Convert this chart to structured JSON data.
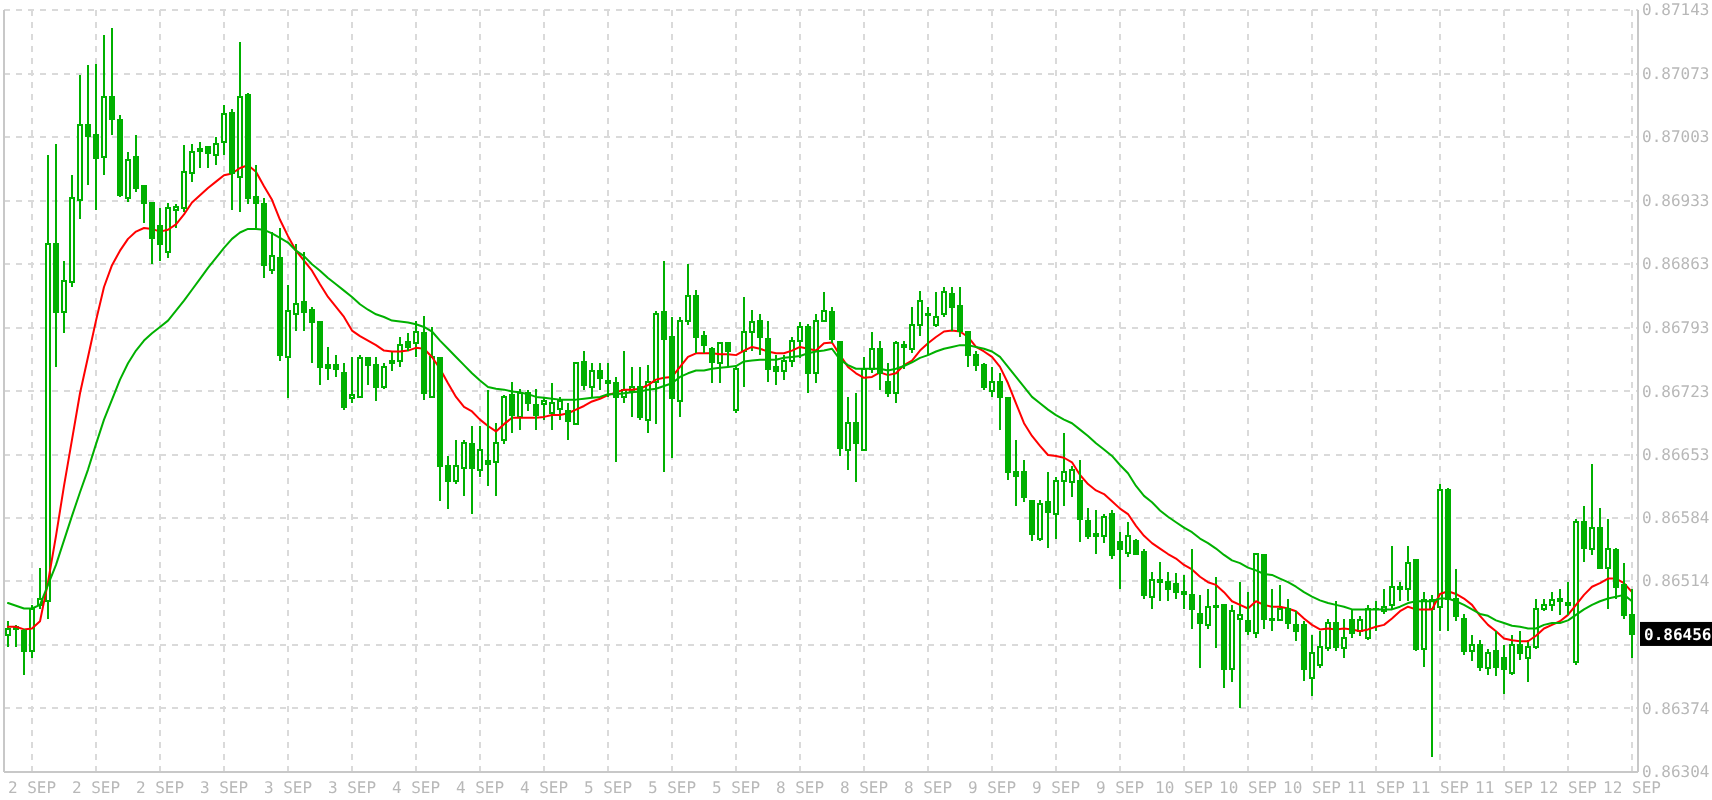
{
  "chart_data": {
    "type": "candlestick",
    "color": "#00b000",
    "grid": true,
    "ylim": [
      0.86304,
      0.87143
    ],
    "yticks": [
      0.87143,
      0.87073,
      0.87003,
      0.86933,
      0.86863,
      0.86793,
      0.86723,
      0.86653,
      0.86584,
      0.86514,
      {
        "value": 0.86444,
        "label": null
      },
      0.86374,
      0.86304
    ],
    "annotations": [
      {
        "text": "0.86456",
        "y": 0.86456
      }
    ],
    "categories": [
      null,
      null,
      null,
      "2 SEP",
      null,
      null,
      null,
      null,
      null,
      null,
      null,
      "2 SEP",
      null,
      null,
      null,
      null,
      null,
      null,
      null,
      "2 SEP",
      null,
      null,
      null,
      null,
      null,
      null,
      null,
      "3 SEP",
      null,
      null,
      null,
      null,
      null,
      null,
      null,
      "3 SEP",
      null,
      null,
      null,
      null,
      null,
      null,
      null,
      "3 SEP",
      null,
      null,
      null,
      null,
      null,
      null,
      null,
      "4 SEP",
      null,
      null,
      null,
      null,
      null,
      null,
      null,
      "4 SEP",
      null,
      null,
      null,
      null,
      null,
      null,
      null,
      "4 SEP",
      null,
      null,
      null,
      null,
      null,
      null,
      null,
      "5 SEP",
      null,
      null,
      null,
      null,
      null,
      null,
      null,
      "5 SEP",
      null,
      null,
      null,
      null,
      null,
      null,
      null,
      "5 SEP",
      null,
      null,
      null,
      null,
      null,
      null,
      null,
      "8 SEP",
      null,
      null,
      null,
      null,
      null,
      null,
      null,
      "8 SEP",
      null,
      null,
      null,
      null,
      null,
      null,
      null,
      "8 SEP",
      null,
      null,
      null,
      null,
      null,
      null,
      null,
      "9 SEP",
      null,
      null,
      null,
      null,
      null,
      null,
      null,
      "9 SEP",
      null,
      null,
      null,
      null,
      null,
      null,
      null,
      "9 SEP",
      null,
      null,
      null,
      null,
      null,
      null,
      null,
      "10 SEP",
      null,
      null,
      null,
      null,
      null,
      null,
      null,
      "10 SEP",
      null,
      null,
      null,
      null,
      null,
      null,
      null,
      "10 SEP",
      null,
      null,
      null,
      null,
      null,
      null,
      null,
      "11 SEP",
      null,
      null,
      null,
      null,
      null,
      null,
      null,
      "11 SEP",
      null,
      null,
      null,
      null,
      null,
      null,
      null,
      "11 SEP",
      null,
      null,
      null,
      null,
      null,
      null,
      null,
      "12 SEP",
      null,
      null,
      null,
      null,
      null,
      null,
      null,
      "12 SEP"
    ],
    "ohlc": [
      [
        0.86455,
        0.8647,
        0.86442,
        0.86462
      ],
      [
        0.86461,
        0.86466,
        0.86442,
        0.86464
      ],
      [
        0.86459,
        0.86462,
        0.86411,
        0.86437
      ],
      [
        0.86437,
        0.86488,
        0.8643,
        0.86484
      ],
      [
        0.86488,
        0.86529,
        0.86483,
        0.86495
      ],
      [
        0.86492,
        0.86983,
        0.86473,
        0.86885
      ],
      [
        0.86885,
        0.86996,
        0.8675,
        0.86811
      ],
      [
        0.86811,
        0.86867,
        0.86787,
        0.86845
      ],
      [
        0.86843,
        0.86961,
        0.86838,
        0.86936
      ],
      [
        0.86934,
        0.87071,
        0.86913,
        0.87016
      ],
      [
        0.87016,
        0.87082,
        0.8695,
        0.87004
      ],
      [
        0.87005,
        0.87084,
        0.86923,
        0.8698
      ],
      [
        0.86981,
        0.87116,
        0.86961,
        0.87047
      ],
      [
        0.87047,
        0.87123,
        0.87005,
        0.87023
      ],
      [
        0.87022,
        0.87027,
        0.86937,
        0.86939
      ],
      [
        0.86936,
        0.86987,
        0.86932,
        0.86978
      ],
      [
        0.86981,
        0.87005,
        0.86943,
        0.86947
      ],
      [
        0.86949,
        0.86949,
        0.86908,
        0.86931
      ],
      [
        0.8693,
        0.86932,
        0.86863,
        0.86892
      ],
      [
        0.86905,
        0.86925,
        0.86867,
        0.86885
      ],
      [
        0.86876,
        0.8693,
        0.8687,
        0.86925
      ],
      [
        0.86923,
        0.86929,
        0.86903,
        0.86926
      ],
      [
        0.86925,
        0.86994,
        0.86921,
        0.86965
      ],
      [
        0.86963,
        0.86996,
        0.86954,
        0.86987
      ],
      [
        0.86988,
        0.86998,
        0.86969,
        0.8699
      ],
      [
        0.86992,
        0.86992,
        0.86969,
        0.86985
      ],
      [
        0.86983,
        0.87003,
        0.86972,
        0.86996
      ],
      [
        0.86998,
        0.87038,
        0.86983,
        0.87029
      ],
      [
        0.8703,
        0.87034,
        0.86923,
        0.86963
      ],
      [
        0.86959,
        0.87108,
        0.86921,
        0.87047
      ],
      [
        0.87049,
        0.87052,
        0.86929,
        0.86936
      ],
      [
        0.86937,
        0.86972,
        0.86903,
        0.86931
      ],
      [
        0.86929,
        0.86936,
        0.86848,
        0.86862
      ],
      [
        0.86857,
        0.86899,
        0.86852,
        0.86872
      ],
      [
        0.8687,
        0.86903,
        0.86757,
        0.86763
      ],
      [
        0.86761,
        0.8684,
        0.86716,
        0.86812
      ],
      [
        0.86808,
        0.86885,
        0.8679,
        0.86819
      ],
      [
        0.86821,
        0.86876,
        0.8679,
        0.86811
      ],
      [
        0.86813,
        0.86816,
        0.86754,
        0.868
      ],
      [
        0.86799,
        0.86799,
        0.8673,
        0.8675
      ],
      [
        0.86752,
        0.86772,
        0.86736,
        0.86749
      ],
      [
        0.86752,
        0.86763,
        0.86739,
        0.86748
      ],
      [
        0.86743,
        0.86754,
        0.86703,
        0.86706
      ],
      [
        0.86716,
        0.86761,
        0.8671,
        0.86719
      ],
      [
        0.86717,
        0.86763,
        0.86716,
        0.8676
      ],
      [
        0.8676,
        0.86761,
        0.8673,
        0.86752
      ],
      [
        0.86752,
        0.86761,
        0.86712,
        0.86728
      ],
      [
        0.86728,
        0.86754,
        0.86726,
        0.8675
      ],
      [
        0.86754,
        0.86768,
        0.86745,
        0.86756
      ],
      [
        0.86757,
        0.86783,
        0.8675,
        0.86774
      ],
      [
        0.86777,
        0.86787,
        0.86768,
        0.86772
      ],
      [
        0.86776,
        0.86801,
        0.86761,
        0.86788
      ],
      [
        0.86787,
        0.86806,
        0.86714,
        0.86721
      ],
      [
        0.86717,
        0.86794,
        0.86716,
        0.86761
      ],
      [
        0.8676,
        0.86761,
        0.86602,
        0.86641
      ],
      [
        0.86641,
        0.86652,
        0.86594,
        0.86624
      ],
      [
        0.86624,
        0.8667,
        0.86621,
        0.86641
      ],
      [
        0.86639,
        0.8667,
        0.86608,
        0.86666
      ],
      [
        0.86665,
        0.86685,
        0.86588,
        0.86639
      ],
      [
        0.86637,
        0.86685,
        0.86629,
        0.86658
      ],
      [
        0.86646,
        0.86725,
        0.86619,
        0.86643
      ],
      [
        0.86645,
        0.86688,
        0.86608,
        0.86666
      ],
      [
        0.8667,
        0.86719,
        0.86665,
        0.86717
      ],
      [
        0.86719,
        0.86733,
        0.86677,
        0.86697
      ],
      [
        0.86695,
        0.86726,
        0.86681,
        0.86721
      ],
      [
        0.86721,
        0.86725,
        0.86701,
        0.8671
      ],
      [
        0.86708,
        0.86726,
        0.86681,
        0.86697
      ],
      [
        0.86709,
        0.86717,
        0.86692,
        0.86712
      ],
      [
        0.86699,
        0.86732,
        0.86681,
        0.8671
      ],
      [
        0.86704,
        0.86717,
        0.86692,
        0.86713
      ],
      [
        0.86701,
        0.8671,
        0.8667,
        0.8669
      ],
      [
        0.86687,
        0.86754,
        0.86687,
        0.86754
      ],
      [
        0.86755,
        0.86768,
        0.86725,
        0.8673
      ],
      [
        0.86728,
        0.86754,
        0.86717,
        0.86745
      ],
      [
        0.86745,
        0.86754,
        0.86725,
        0.86738
      ],
      [
        0.86734,
        0.86754,
        0.86717,
        0.86732
      ],
      [
        0.86732,
        0.86739,
        0.86645,
        0.86717
      ],
      [
        0.86717,
        0.86767,
        0.8671,
        0.86725
      ],
      [
        0.86723,
        0.8675,
        0.86695,
        0.86728
      ],
      [
        0.86728,
        0.8675,
        0.86692,
        0.86695
      ],
      [
        0.86692,
        0.86752,
        0.86677,
        0.86733
      ],
      [
        0.86733,
        0.86812,
        0.86687,
        0.86808
      ],
      [
        0.86811,
        0.86867,
        0.86634,
        0.86781
      ],
      [
        0.86783,
        0.86805,
        0.8665,
        0.86716
      ],
      [
        0.86712,
        0.86805,
        0.86695,
        0.86801
      ],
      [
        0.86801,
        0.86863,
        0.86796,
        0.86828
      ],
      [
        0.86828,
        0.86835,
        0.86765,
        0.86783
      ],
      [
        0.86784,
        0.8679,
        0.86765,
        0.86774
      ],
      [
        0.8677,
        0.86772,
        0.86732,
        0.86755
      ],
      [
        0.86754,
        0.86777,
        0.86732,
        0.86776
      ],
      [
        0.86776,
        0.86776,
        0.8675,
        0.86767
      ],
      [
        0.86703,
        0.8675,
        0.86699,
        0.86748
      ],
      [
        0.86768,
        0.86827,
        0.86728,
        0.86789
      ],
      [
        0.86789,
        0.86813,
        0.86768,
        0.86799
      ],
      [
        0.86801,
        0.86808,
        0.86763,
        0.86783
      ],
      [
        0.86781,
        0.86801,
        0.86733,
        0.86748
      ],
      [
        0.8675,
        0.86763,
        0.8673,
        0.86746
      ],
      [
        0.86746,
        0.86763,
        0.86736,
        0.86757
      ],
      [
        0.86757,
        0.86783,
        0.8675,
        0.86779
      ],
      [
        0.86779,
        0.86799,
        0.8676,
        0.86794
      ],
      [
        0.86794,
        0.86797,
        0.86721,
        0.86743
      ],
      [
        0.86743,
        0.86808,
        0.86732,
        0.86801
      ],
      [
        0.86801,
        0.86832,
        0.86799,
        0.86812
      ],
      [
        0.86811,
        0.86816,
        0.86776,
        0.86781
      ],
      [
        0.86777,
        0.86779,
        0.86652,
        0.86661
      ],
      [
        0.86659,
        0.86717,
        0.86637,
        0.86688
      ],
      [
        0.86688,
        0.86721,
        0.86623,
        0.86666
      ],
      [
        0.86659,
        0.86761,
        0.86658,
        0.86748
      ],
      [
        0.86748,
        0.86789,
        0.86743,
        0.8677
      ],
      [
        0.8677,
        0.86779,
        0.86725,
        0.86743
      ],
      [
        0.86733,
        0.86754,
        0.86717,
        0.86721
      ],
      [
        0.86721,
        0.86779,
        0.8671,
        0.86776
      ],
      [
        0.86774,
        0.86779,
        0.86748,
        0.86772
      ],
      [
        0.8677,
        0.86816,
        0.86765,
        0.86796
      ],
      [
        0.86796,
        0.86834,
        0.86784,
        0.86823
      ],
      [
        0.86808,
        0.86816,
        0.86763,
        0.86807
      ],
      [
        0.86796,
        0.86832,
        0.86794,
        0.86805
      ],
      [
        0.86808,
        0.86838,
        0.86805,
        0.86832
      ],
      [
        0.8683,
        0.86838,
        0.8679,
        0.86816
      ],
      [
        0.86817,
        0.86838,
        0.86783,
        0.8679
      ],
      [
        0.86789,
        0.8679,
        0.8675,
        0.86763
      ],
      [
        0.86763,
        0.86768,
        0.86746,
        0.86752
      ],
      [
        0.86752,
        0.86754,
        0.86725,
        0.86728
      ],
      [
        0.86723,
        0.8675,
        0.86717,
        0.86733
      ],
      [
        0.86733,
        0.86743,
        0.86681,
        0.86717
      ],
      [
        0.86716,
        0.86717,
        0.86626,
        0.86634
      ],
      [
        0.86634,
        0.8667,
        0.86597,
        0.8663
      ],
      [
        0.86634,
        0.86648,
        0.86601,
        0.86607
      ],
      [
        0.86602,
        0.86604,
        0.86558,
        0.86566
      ],
      [
        0.86561,
        0.86604,
        0.86558,
        0.86599
      ],
      [
        0.86601,
        0.86634,
        0.86551,
        0.8659
      ],
      [
        0.86588,
        0.86629,
        0.86561,
        0.86624
      ],
      [
        0.86624,
        0.86677,
        0.86597,
        0.86634
      ],
      [
        0.86623,
        0.86641,
        0.86607,
        0.86637
      ],
      [
        0.86624,
        0.86648,
        0.86557,
        0.86583
      ],
      [
        0.8658,
        0.86595,
        0.86561,
        0.86564
      ],
      [
        0.86564,
        0.86592,
        0.86544,
        0.86566
      ],
      [
        0.86564,
        0.86588,
        0.86556,
        0.86585
      ],
      [
        0.86588,
        0.86592,
        0.86539,
        0.86543
      ],
      [
        0.86557,
        0.86568,
        0.86506,
        0.8655
      ],
      [
        0.86545,
        0.86579,
        0.86541,
        0.86564
      ],
      [
        0.86558,
        0.86561,
        0.86543,
        0.86544
      ],
      [
        0.86546,
        0.8655,
        0.86495,
        0.86499
      ],
      [
        0.86497,
        0.86524,
        0.86484,
        0.86515
      ],
      [
        0.86515,
        0.86535,
        0.86492,
        0.86513
      ],
      [
        0.86513,
        0.86524,
        0.86492,
        0.86506
      ],
      [
        0.86511,
        0.86523,
        0.86495,
        0.86502
      ],
      [
        0.86502,
        0.86521,
        0.86484,
        0.865
      ],
      [
        0.86499,
        0.8655,
        0.86462,
        0.86483
      ],
      [
        0.86478,
        0.86499,
        0.86419,
        0.86468
      ],
      [
        0.86466,
        0.86506,
        0.86462,
        0.86486
      ],
      [
        0.86486,
        0.86519,
        0.86441,
        0.86487
      ],
      [
        0.86488,
        0.86488,
        0.86397,
        0.86417
      ],
      [
        0.86417,
        0.86488,
        0.86403,
        0.86481
      ],
      [
        0.86473,
        0.86513,
        0.86375,
        0.86477
      ],
      [
        0.8647,
        0.86502,
        0.86455,
        0.86459
      ],
      [
        0.86457,
        0.86544,
        0.86451,
        0.86544
      ],
      [
        0.86543,
        0.86544,
        0.86462,
        0.86473
      ],
      [
        0.86472,
        0.86506,
        0.86459,
        0.86471
      ],
      [
        0.86471,
        0.8651,
        0.8647,
        0.86483
      ],
      [
        0.86484,
        0.86495,
        0.86462,
        0.86468
      ],
      [
        0.86466,
        0.86481,
        0.86448,
        0.86459
      ],
      [
        0.86466,
        0.8647,
        0.86404,
        0.86417
      ],
      [
        0.86408,
        0.86455,
        0.86388,
        0.86435
      ],
      [
        0.86422,
        0.86459,
        0.86419,
        0.86442
      ],
      [
        0.86441,
        0.86473,
        0.86437,
        0.86468
      ],
      [
        0.86468,
        0.86492,
        0.86437,
        0.86442
      ],
      [
        0.86441,
        0.86473,
        0.8643,
        0.86451
      ],
      [
        0.86471,
        0.86484,
        0.86451,
        0.86457
      ],
      [
        0.86459,
        0.86476,
        0.86454,
        0.86471
      ],
      [
        0.86451,
        0.86488,
        0.86449,
        0.86483
      ],
      [
        0.86483,
        0.86492,
        0.86459,
        0.86484
      ],
      [
        0.86481,
        0.86505,
        0.86478,
        0.86486
      ],
      [
        0.86488,
        0.86553,
        0.86483,
        0.86508
      ],
      [
        0.86508,
        0.86513,
        0.86492,
        0.86505
      ],
      [
        0.86506,
        0.86553,
        0.86492,
        0.86534
      ],
      [
        0.86537,
        0.86538,
        0.86437,
        0.86439
      ],
      [
        0.86439,
        0.86502,
        0.8642,
        0.86493
      ],
      [
        0.86484,
        0.86499,
        0.8632,
        0.86493
      ],
      [
        0.86486,
        0.86621,
        0.86459,
        0.86614
      ],
      [
        0.86614,
        0.86617,
        0.86459,
        0.86495
      ],
      [
        0.86495,
        0.86527,
        0.8647,
        0.86476
      ],
      [
        0.86473,
        0.86478,
        0.86433,
        0.86437
      ],
      [
        0.86437,
        0.86455,
        0.86426,
        0.86444
      ],
      [
        0.86444,
        0.86449,
        0.86415,
        0.8642
      ],
      [
        0.86419,
        0.86439,
        0.86411,
        0.86435
      ],
      [
        0.86437,
        0.86459,
        0.8641,
        0.8642
      ],
      [
        0.8643,
        0.86444,
        0.8639,
        0.86417
      ],
      [
        0.86413,
        0.86455,
        0.86411,
        0.86444
      ],
      [
        0.86444,
        0.86459,
        0.86427,
        0.86435
      ],
      [
        0.8643,
        0.86449,
        0.86403,
        0.86442
      ],
      [
        0.86442,
        0.86495,
        0.86439,
        0.86484
      ],
      [
        0.86483,
        0.86495,
        0.86481,
        0.86488
      ],
      [
        0.86488,
        0.86502,
        0.86481,
        0.86493
      ],
      [
        0.86495,
        0.86505,
        0.86477,
        0.86492
      ],
      [
        0.8649,
        0.86513,
        0.86477,
        0.86488
      ],
      [
        0.86425,
        0.86583,
        0.86422,
        0.86579
      ],
      [
        0.86579,
        0.86597,
        0.86535,
        0.86551
      ],
      [
        0.8655,
        0.86643,
        0.86543,
        0.86573
      ],
      [
        0.86573,
        0.86595,
        0.86528,
        0.86529
      ],
      [
        0.86529,
        0.86583,
        0.86484,
        0.8655
      ],
      [
        0.86548,
        0.86551,
        0.86495,
        0.86508
      ],
      [
        0.8651,
        0.86534,
        0.86473,
        0.86477
      ],
      [
        0.86477,
        0.86506,
        0.8643,
        0.86456
      ]
    ],
    "series": [
      {
        "type": "line",
        "color": "#ff0000",
        "values": [
          0.86464,
          0.86464,
          0.86461,
          0.86462,
          0.8647,
          0.86513,
          0.86564,
          0.86619,
          0.8667,
          0.86721,
          0.86761,
          0.86801,
          0.86838,
          0.86862,
          0.86878,
          0.86891,
          0.86899,
          0.86903,
          0.86902,
          0.86899,
          0.86901,
          0.86907,
          0.86918,
          0.86931,
          0.86939,
          0.86947,
          0.86954,
          0.86961,
          0.86963,
          0.86969,
          0.86972,
          0.86965,
          0.86949,
          0.86934,
          0.86912,
          0.86894,
          0.86878,
          0.86867,
          0.86856,
          0.86841,
          0.86827,
          0.86816,
          0.86805,
          0.8679,
          0.86784,
          0.86779,
          0.86774,
          0.86768,
          0.86767,
          0.86767,
          0.86768,
          0.86771,
          0.8677,
          0.86761,
          0.86748,
          0.86732,
          0.86717,
          0.86706,
          0.86701,
          0.86692,
          0.86685,
          0.86679,
          0.86687,
          0.86694,
          0.86694,
          0.86694,
          0.86694,
          0.86695,
          0.86697,
          0.86697,
          0.86699,
          0.86703,
          0.86707,
          0.86712,
          0.86715,
          0.86719,
          0.86722,
          0.86725,
          0.86725,
          0.86726,
          0.8673,
          0.86736,
          0.86738,
          0.86739,
          0.8675,
          0.86761,
          0.86765,
          0.86765,
          0.86765,
          0.86764,
          0.86764,
          0.86763,
          0.86768,
          0.86772,
          0.8677,
          0.86767,
          0.86765,
          0.86765,
          0.86768,
          0.86772,
          0.8677,
          0.86768,
          0.86776,
          0.86777,
          0.86763,
          0.8675,
          0.86743,
          0.86738,
          0.86739,
          0.86744,
          0.86741,
          0.86743,
          0.86752,
          0.86757,
          0.86768,
          0.86776,
          0.86783,
          0.86789,
          0.8679,
          0.86789,
          0.86783,
          0.86772,
          0.86767,
          0.86761,
          0.8675,
          0.86732,
          0.8671,
          0.86688,
          0.86674,
          0.86663,
          0.86653,
          0.86652,
          0.8665,
          0.86645,
          0.86631,
          0.86621,
          0.86614,
          0.8661,
          0.86602,
          0.86594,
          0.86588,
          0.86575,
          0.86564,
          0.86556,
          0.8655,
          0.86544,
          0.86539,
          0.86532,
          0.86527,
          0.86519,
          0.86513,
          0.8651,
          0.86502,
          0.86492,
          0.86488,
          0.86484,
          0.86492,
          0.86488,
          0.86486,
          0.86486,
          0.86484,
          0.86481,
          0.86473,
          0.86466,
          0.86461,
          0.86462,
          0.86461,
          0.86462,
          0.86461,
          0.86459,
          0.86461,
          0.86464,
          0.86466,
          0.86473,
          0.86481,
          0.86486,
          0.86483,
          0.86483,
          0.86483,
          0.865,
          0.86503,
          0.865,
          0.86495,
          0.86488,
          0.86476,
          0.86466,
          0.86459,
          0.86451,
          0.86449,
          0.86448,
          0.86448,
          0.86454,
          0.86462,
          0.86466,
          0.8647,
          0.86477,
          0.86488,
          0.86499,
          0.86508,
          0.86512,
          0.86517,
          0.86517,
          0.86512,
          0.86502
        ]
      },
      {
        "type": "line",
        "color": "#00b000",
        "values": [
          0.8649,
          0.86487,
          0.86484,
          0.86484,
          0.86488,
          0.8651,
          0.86532,
          0.86559,
          0.86586,
          0.86612,
          0.86637,
          0.86665,
          0.86692,
          0.86714,
          0.86736,
          0.86754,
          0.86768,
          0.86779,
          0.86787,
          0.86794,
          0.86801,
          0.86812,
          0.86823,
          0.86835,
          0.86847,
          0.86859,
          0.8687,
          0.86881,
          0.86891,
          0.86898,
          0.86902,
          0.86902,
          0.86901,
          0.86897,
          0.86892,
          0.86887,
          0.86878,
          0.86872,
          0.86863,
          0.86856,
          0.86848,
          0.86841,
          0.86834,
          0.86827,
          0.86819,
          0.86813,
          0.86808,
          0.86805,
          0.86801,
          0.868,
          0.86799,
          0.86797,
          0.86794,
          0.86789,
          0.86779,
          0.8677,
          0.86761,
          0.86752,
          0.86743,
          0.86735,
          0.86728,
          0.86726,
          0.86725,
          0.86723,
          0.86722,
          0.8672,
          0.86717,
          0.86716,
          0.86715,
          0.86714,
          0.86714,
          0.86714,
          0.86715,
          0.86716,
          0.86717,
          0.8672,
          0.8672,
          0.86721,
          0.86722,
          0.86723,
          0.86725,
          0.86726,
          0.86729,
          0.86732,
          0.86739,
          0.86743,
          0.86746,
          0.86746,
          0.86748,
          0.86749,
          0.8675,
          0.86751,
          0.86756,
          0.86757,
          0.86758,
          0.86758,
          0.86758,
          0.8676,
          0.86761,
          0.86762,
          0.86765,
          0.86767,
          0.86768,
          0.8677,
          0.86758,
          0.86752,
          0.86748,
          0.86748,
          0.86748,
          0.86748,
          0.86746,
          0.86748,
          0.86751,
          0.86755,
          0.8676,
          0.86763,
          0.86767,
          0.8677,
          0.86772,
          0.86774,
          0.86774,
          0.86772,
          0.8677,
          0.86767,
          0.86761,
          0.8675,
          0.86739,
          0.86728,
          0.86717,
          0.8671,
          0.86703,
          0.86697,
          0.86692,
          0.86688,
          0.86681,
          0.86674,
          0.86666,
          0.86659,
          0.86652,
          0.86642,
          0.86633,
          0.86619,
          0.86608,
          0.86601,
          0.86592,
          0.86585,
          0.86579,
          0.86573,
          0.86568,
          0.86561,
          0.86556,
          0.8655,
          0.86543,
          0.86537,
          0.86534,
          0.86529,
          0.86526,
          0.86522,
          0.86521,
          0.86517,
          0.86513,
          0.86508,
          0.86502,
          0.86497,
          0.86493,
          0.8649,
          0.86488,
          0.86486,
          0.86483,
          0.86483,
          0.86483,
          0.86483,
          0.86483,
          0.86483,
          0.86486,
          0.8649,
          0.86492,
          0.86492,
          0.86492,
          0.86495,
          0.86495,
          0.86492,
          0.86488,
          0.86483,
          0.86478,
          0.86476,
          0.86471,
          0.86468,
          0.86465,
          0.86464,
          0.86462,
          0.86462,
          0.86466,
          0.86468,
          0.86468,
          0.86471,
          0.86477,
          0.86483,
          0.86488,
          0.86492,
          0.86495,
          0.86497,
          0.86499,
          0.86492
        ]
      }
    ]
  }
}
